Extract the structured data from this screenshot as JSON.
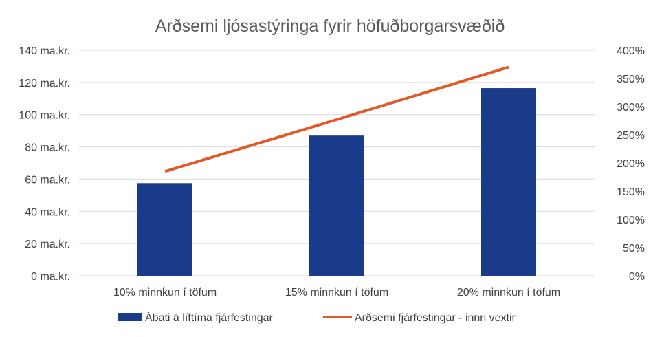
{
  "chart_data": {
    "type": "bar",
    "title": "Arðsemi ljósastýringa fyrir höfuðborgarsvæðið",
    "categories": [
      "10% minnkun í töfum",
      "15% minnkun í töfum",
      "20% minnkun í töfum"
    ],
    "series": [
      {
        "name": "Ábati á líftíma fjárfestingar",
        "type": "bar",
        "axis": "left",
        "values": [
          57.5,
          87,
          116.5
        ]
      },
      {
        "name": "Arðsemi fjárfestingar - innri vextir",
        "type": "line",
        "axis": "right",
        "values": [
          185,
          277,
          370
        ]
      }
    ],
    "ylim": [
      0,
      140
    ],
    "y2lim": [
      0,
      400
    ],
    "yticks": [
      "0 ma.kr.",
      "20 ma.kr.",
      "40 ma.kr.",
      "60 ma.kr.",
      "80 ma.kr.",
      "100 ma.kr.",
      "120 ma.kr.",
      "140 ma.kr."
    ],
    "y2ticks": [
      "0%",
      "50%",
      "100%",
      "150%",
      "200%",
      "250%",
      "300%",
      "350%",
      "400%"
    ],
    "grid": true,
    "legend_position": "bottom",
    "colors": {
      "bar": "#1A3A8A",
      "line": "#E05A28",
      "grid": "#D9D9D9"
    }
  }
}
